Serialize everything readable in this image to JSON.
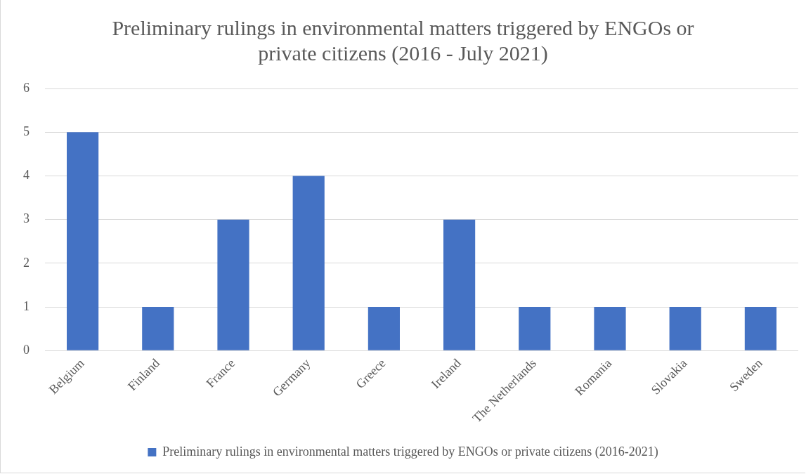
{
  "chart_data": {
    "type": "bar",
    "title": "Preliminary rulings in environmental matters triggered by ENGOs or private citizens (2016 - July 2021)",
    "categories": [
      "Belgium",
      "Finland",
      "France",
      "Germany",
      "Greece",
      "Ireland",
      "The Netherlands",
      "Romania",
      "Slovakia",
      "Sweden"
    ],
    "series": [
      {
        "name": "Preliminary rulings in environmental matters triggered by ENGOs or private citizens (2016-2021)",
        "color": "#4472c4",
        "values": [
          5,
          1,
          3,
          4,
          1,
          3,
          1,
          1,
          1,
          1
        ]
      }
    ],
    "ylim": [
      0,
      6
    ],
    "yticks": [
      0,
      1,
      2,
      3,
      4,
      5,
      6
    ],
    "grid": "y",
    "legend": "bottom"
  }
}
